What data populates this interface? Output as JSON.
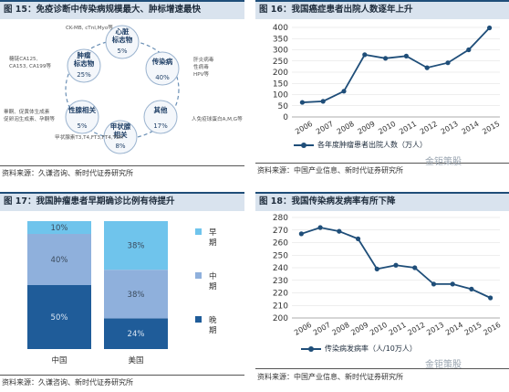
{
  "fig15": {
    "title": "图 15：免疫诊断中传染病规模最大、肿标增速最快",
    "source": "资料来源：久谦咨询、新时代证券研究所",
    "center_labels": [
      "CK-MB, cTnI,Myo等",
      "心脏\n标志物",
      "5%",
      "传染病",
      "40%",
      "肝炎病毒\n性病毒\nHPV等",
      "其他",
      "17%",
      "人免疫球蛋白A,M,G等",
      "甲状腺\n相关",
      "8%",
      "甲状腺素T3,T4,FT3,FT4,TSH",
      "性腺相关",
      "5%",
      "睾酮、促黄体生成素\n促卵泡生成素、孕酮等",
      "肿瘤\n标志物",
      "25%",
      "糖链CA125,\nCA153, CA199等"
    ]
  },
  "fig16": {
    "title": "图 16：我国癌症患者出院人数逐年上升",
    "source": "资料来源：中国产业信息、新时代证券研究所",
    "watermark": "金钜策股"
  },
  "fig17": {
    "title": "图 17：我国肿瘤患者早期确诊比例有待提升",
    "source": "资料来源：久谦咨询、新时代证券研究所"
  },
  "fig18": {
    "title": "图 18：我国传染病发病率有所下降",
    "source": "资料来源：中国产业信息、新时代证券研究所",
    "watermark": "金钜策股"
  },
  "chart_data": [
    {
      "type": "line",
      "x": [
        "2006",
        "2007",
        "2008",
        "2009",
        "2010",
        "2011",
        "2012",
        "2013",
        "2014",
        "2015"
      ],
      "series": [
        {
          "name": "各年度肿瘤患者出院人数（万人）",
          "values": [
            65,
            70,
            115,
            278,
            262,
            272,
            220,
            242,
            300,
            398
          ]
        }
      ],
      "ylim": [
        0,
        400
      ],
      "yticks": [
        0,
        50,
        100,
        150,
        200,
        250,
        300,
        350,
        400
      ],
      "color": "#1f4e79"
    },
    {
      "type": "bar",
      "stacked": true,
      "categories": [
        "中国",
        "美国"
      ],
      "series": [
        {
          "name": "晚期",
          "values": [
            50,
            24
          ],
          "color": "#1f5c99"
        },
        {
          "name": "中期",
          "values": [
            40,
            38
          ],
          "color": "#8fb0dc"
        },
        {
          "name": "早期",
          "values": [
            10,
            38
          ],
          "color": "#6fc4ec"
        }
      ],
      "ylim": [
        0,
        100
      ]
    },
    {
      "type": "line",
      "x": [
        "2006",
        "2007",
        "2008",
        "2009",
        "2010",
        "2011",
        "2012",
        "2013",
        "2014",
        "2015",
        "2016"
      ],
      "series": [
        {
          "name": "传染病发病率（人/10万人）",
          "values": [
            267,
            272,
            269,
            263,
            239,
            242,
            240,
            227,
            227,
            223,
            216
          ]
        }
      ],
      "ylim": [
        200,
        280
      ],
      "yticks": [
        200,
        210,
        220,
        230,
        240,
        250,
        260,
        270,
        280
      ],
      "color": "#1f4e79"
    }
  ]
}
